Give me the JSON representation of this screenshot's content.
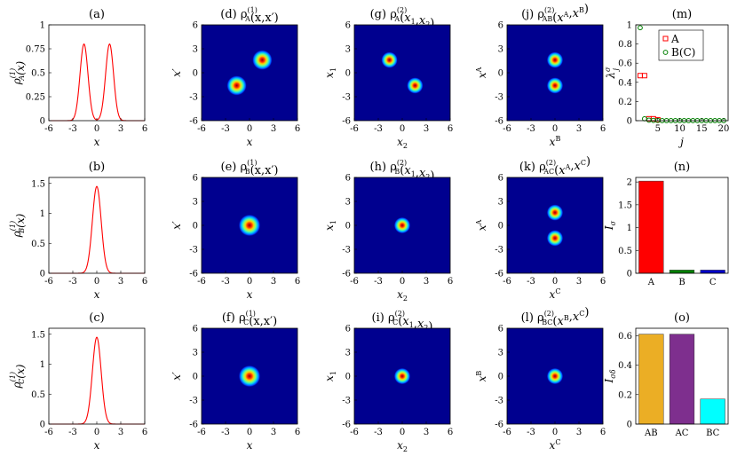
{
  "colors": {
    "line": "#ff0000",
    "heat_bg": "#00008f",
    "A": "#ff0000",
    "B": "#008000",
    "bar_B": "#008000",
    "bar_C": "#0000cc",
    "AB": "#ebae25",
    "AC": "#7e2f8e",
    "BC": "#00ffff"
  },
  "chart_data": [
    {
      "id": "a",
      "type": "line",
      "title": "(a)",
      "xlabel": "x",
      "ylabel": "ρA(1)(x)",
      "xlim": [
        -6,
        6
      ],
      "ylim": [
        0,
        1
      ],
      "xticks": [
        "-6",
        "-3",
        "0",
        "3",
        "6"
      ],
      "yticks": [
        "0",
        "0.25",
        "0.5",
        "0.75",
        "1"
      ],
      "curve": {
        "kind": "double-gaussian",
        "centers": [
          -1.6,
          1.6
        ],
        "peak": 0.8,
        "sigma": 0.5
      }
    },
    {
      "id": "b",
      "type": "line",
      "title": "(b)",
      "xlabel": "x",
      "ylabel": "ρB(1)(x)",
      "xlim": [
        -6,
        6
      ],
      "ylim": [
        0,
        1.6
      ],
      "xticks": [
        "-6",
        "-3",
        "0",
        "3",
        "6"
      ],
      "yticks": [
        "0",
        "0.5",
        "1",
        "1.5"
      ],
      "curve": {
        "kind": "gaussian",
        "centers": [
          0
        ],
        "peak": 1.45,
        "sigma": 0.55
      }
    },
    {
      "id": "c",
      "type": "line",
      "title": "(c)",
      "xlabel": "x",
      "ylabel": "ρC(1)(x)",
      "xlim": [
        -6,
        6
      ],
      "ylim": [
        0,
        1.6
      ],
      "xticks": [
        "-6",
        "-3",
        "0",
        "3",
        "6"
      ],
      "yticks": [
        "0",
        "0.5",
        "1",
        "1.5"
      ],
      "curve": {
        "kind": "gaussian",
        "centers": [
          0
        ],
        "peak": 1.45,
        "sigma": 0.55
      }
    },
    {
      "id": "d",
      "type": "heatmap",
      "title": "(d) ρA(1)(x,x′)",
      "xlabel": "x",
      "ylabel": "x′",
      "xlim": [
        -6,
        6
      ],
      "ylim": [
        -6,
        6
      ],
      "xticks": [
        "-6",
        "-3",
        "0",
        "3",
        "6"
      ],
      "yticks": [
        "-6",
        "-3",
        "0",
        "3",
        "6"
      ],
      "blobs": [
        {
          "x": 1.6,
          "y": 1.6,
          "s": 0.55
        },
        {
          "x": -1.6,
          "y": -1.6,
          "s": 0.55
        }
      ]
    },
    {
      "id": "e",
      "type": "heatmap",
      "title": "(e) ρB(1)(x,x′)",
      "xlabel": "x",
      "ylabel": "x′",
      "xlim": [
        -6,
        6
      ],
      "ylim": [
        -6,
        6
      ],
      "xticks": [
        "-6",
        "-3",
        "0",
        "3",
        "6"
      ],
      "yticks": [
        "-6",
        "-3",
        "0",
        "3",
        "6"
      ],
      "blobs": [
        {
          "x": 0,
          "y": 0,
          "s": 0.6
        }
      ]
    },
    {
      "id": "f",
      "type": "heatmap",
      "title": "(f) ρC(1)(x,x′)",
      "xlabel": "x",
      "ylabel": "x′",
      "xlim": [
        -6,
        6
      ],
      "ylim": [
        -6,
        6
      ],
      "xticks": [
        "-6",
        "-3",
        "0",
        "3",
        "6"
      ],
      "yticks": [
        "-6",
        "-3",
        "0",
        "3",
        "6"
      ],
      "blobs": [
        {
          "x": 0,
          "y": 0,
          "s": 0.6
        }
      ]
    },
    {
      "id": "g",
      "type": "heatmap",
      "title": "(g) ρA(2)(x1,x2)",
      "xlabel": "x2",
      "ylabel": "x1",
      "xlim": [
        -6,
        6
      ],
      "ylim": [
        -6,
        6
      ],
      "xticks": [
        "-6",
        "-3",
        "0",
        "3",
        "6"
      ],
      "yticks": [
        "-6",
        "-3",
        "0",
        "3",
        "6"
      ],
      "blobs": [
        {
          "x": -1.6,
          "y": 1.6,
          "s": 0.45
        },
        {
          "x": 1.6,
          "y": -1.6,
          "s": 0.45
        }
      ]
    },
    {
      "id": "h",
      "type": "heatmap",
      "title": "(h) ρB(2)(x1,x2)",
      "xlabel": "x2",
      "ylabel": "x1",
      "xlim": [
        -6,
        6
      ],
      "ylim": [
        -6,
        6
      ],
      "xticks": [
        "-6",
        "-3",
        "0",
        "3",
        "6"
      ],
      "yticks": [
        "-6",
        "-3",
        "0",
        "3",
        "6"
      ],
      "blobs": [
        {
          "x": 0,
          "y": 0,
          "s": 0.45
        }
      ]
    },
    {
      "id": "i",
      "type": "heatmap",
      "title": "(i) ρC(2)(x1,x2)",
      "xlabel": "x2",
      "ylabel": "x1",
      "xlim": [
        -6,
        6
      ],
      "ylim": [
        -6,
        6
      ],
      "xticks": [
        "-6",
        "-3",
        "0",
        "3",
        "6"
      ],
      "yticks": [
        "-6",
        "-3",
        "0",
        "3",
        "6"
      ],
      "blobs": [
        {
          "x": 0,
          "y": 0,
          "s": 0.45
        }
      ]
    },
    {
      "id": "j",
      "type": "heatmap",
      "title": "(j) ρAB(2)(xA,xB)",
      "xlabel": "xB",
      "ylabel": "xA",
      "xlim": [
        -6,
        6
      ],
      "ylim": [
        -6,
        6
      ],
      "xticks": [
        "-6",
        "-3",
        "0",
        "3",
        "6"
      ],
      "yticks": [
        "-6",
        "-3",
        "0",
        "3",
        "6"
      ],
      "blobs": [
        {
          "x": 0,
          "y": 1.6,
          "s": 0.45
        },
        {
          "x": 0,
          "y": -1.6,
          "s": 0.45
        }
      ]
    },
    {
      "id": "k",
      "type": "heatmap",
      "title": "(k) ρAC(2)(xA,xC)",
      "xlabel": "xC",
      "ylabel": "xA",
      "xlim": [
        -6,
        6
      ],
      "ylim": [
        -6,
        6
      ],
      "xticks": [
        "-6",
        "-3",
        "0",
        "3",
        "6"
      ],
      "yticks": [
        "-6",
        "-3",
        "0",
        "3",
        "6"
      ],
      "blobs": [
        {
          "x": 0,
          "y": 1.6,
          "s": 0.45
        },
        {
          "x": 0,
          "y": -1.6,
          "s": 0.45
        }
      ]
    },
    {
      "id": "l",
      "type": "heatmap",
      "title": "(l) ρBC(2)(xB,xC)",
      "xlabel": "xC",
      "ylabel": "xB",
      "xlim": [
        -6,
        6
      ],
      "ylim": [
        -6,
        6
      ],
      "xticks": [
        "-6",
        "-3",
        "0",
        "3",
        "6"
      ],
      "yticks": [
        "-6",
        "-3",
        "0",
        "3",
        "6"
      ],
      "blobs": [
        {
          "x": 0,
          "y": 0,
          "s": 0.45
        }
      ]
    },
    {
      "id": "m",
      "type": "scatter",
      "title": "(m)",
      "xlabel": "j",
      "ylabel": "λjσ",
      "xlim": [
        0,
        21
      ],
      "ylim": [
        0,
        1
      ],
      "xticks": [
        "5",
        "10",
        "15",
        "20"
      ],
      "yticks": [
        "0",
        "0.2",
        "0.4",
        "0.6",
        "0.8",
        "1"
      ],
      "legend": "top-right",
      "series": [
        {
          "name": "A",
          "marker": "square",
          "x": [
            1,
            2,
            3,
            4,
            5
          ],
          "y": [
            0.47,
            0.47,
            0.02,
            0.02,
            0.01
          ]
        },
        {
          "name": "B(C)",
          "marker": "circle",
          "x": [
            1,
            2,
            3,
            4,
            5,
            6,
            7,
            8,
            9,
            10,
            11,
            12,
            13,
            14,
            15,
            16,
            17,
            18,
            19,
            20
          ],
          "y": [
            0.97,
            0.02,
            0.005,
            0.003,
            0.002,
            0.001,
            0.001,
            0.001,
            0.001,
            0.001,
            0.001,
            0.001,
            0.001,
            0.001,
            0.001,
            0.001,
            0.001,
            0.001,
            0.001,
            0.001
          ]
        }
      ]
    },
    {
      "id": "n",
      "type": "bar",
      "title": "(n)",
      "ylabel": "Iσ",
      "ylim": [
        0,
        2.1
      ],
      "yticks": [
        "0",
        "0.5",
        "1",
        "1.5",
        "2"
      ],
      "categories": [
        "A",
        "B",
        "C"
      ],
      "values": [
        2.02,
        0.07,
        0.07
      ]
    },
    {
      "id": "o",
      "type": "bar",
      "title": "(o)",
      "ylabel": "Iσδ",
      "ylim": [
        0,
        0.65
      ],
      "yticks": [
        "0",
        "0.2",
        "0.4",
        "0.6"
      ],
      "categories": [
        "AB",
        "AC",
        "BC"
      ],
      "values": [
        0.61,
        0.61,
        0.17
      ]
    }
  ]
}
